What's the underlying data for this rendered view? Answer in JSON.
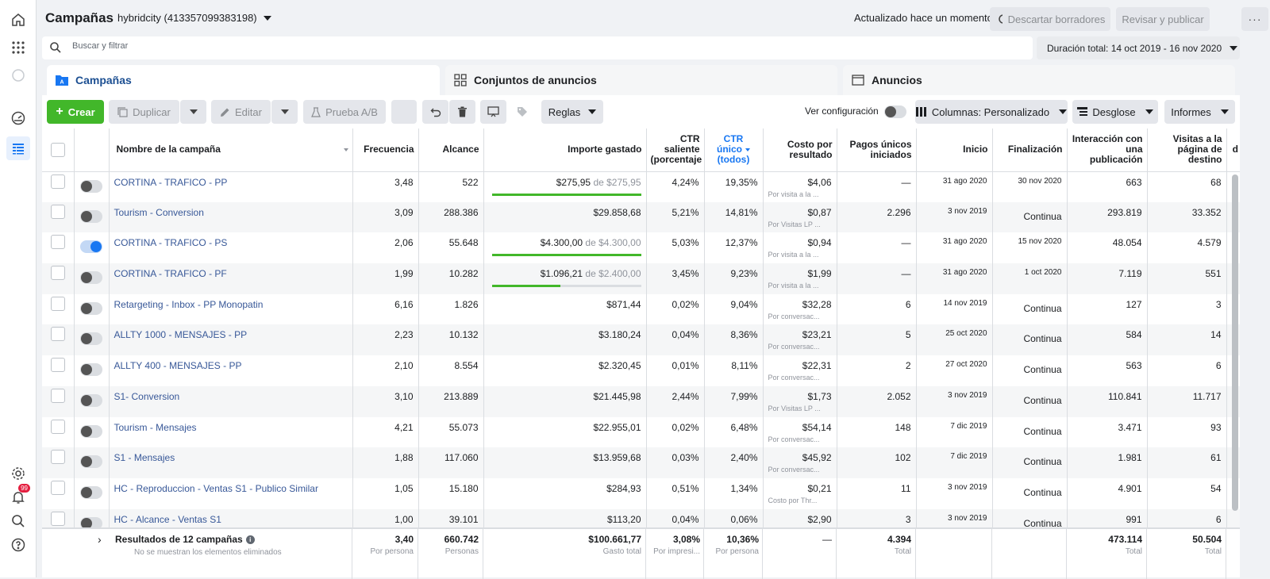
{
  "header": {
    "title": "Campañas",
    "account": "hybridcity (413357099383198)",
    "updated": "Actualizado hace un momento",
    "discard": "Descartar borradores",
    "review": "Revisar y publicar",
    "more": "···"
  },
  "search": {
    "placeholder": "Buscar y filtrar"
  },
  "duration": "Duración total: 14 oct 2019 - 16 nov 2020",
  "nav": {
    "badge": "99"
  },
  "tabs": [
    {
      "label": "Campañas"
    },
    {
      "label": "Conjuntos de anuncios"
    },
    {
      "label": "Anuncios"
    }
  ],
  "toolbar": {
    "create": "Crear",
    "duplicate": "Duplicar",
    "edit": "Editar",
    "abtest": "Prueba A/B",
    "rules": "Reglas",
    "view_config": "Ver configuración",
    "columns": "Columnas: Personalizado",
    "breakdown": "Desglose",
    "reports": "Informes"
  },
  "columns": {
    "name": "Nombre de la campaña",
    "freq": "Frecuencia",
    "reach": "Alcance",
    "spent": "Importe gastado",
    "ctr_out_1": "CTR",
    "ctr_out_2": "saliente",
    "ctr_out_3": "(porcentaje",
    "ctr_uniq_1": "CTR",
    "ctr_uniq_2": "único",
    "ctr_uniq_3": "(todos)",
    "cpr_1": "Costo por",
    "cpr_2": "resultado",
    "payments_1": "Pagos únicos",
    "payments_2": "iniciados",
    "start": "Inicio",
    "end": "Finalización",
    "engagement_1": "Interacción con",
    "engagement_2": "una publicación",
    "visits_1": "Visitas a la",
    "visits_2": "página de",
    "visits_3": "destino",
    "extra": "d"
  },
  "rows": [
    {
      "name": "CORTINA - TRAFICO - PP",
      "on": false,
      "freq": "3,48",
      "reach": "522",
      "spent": "$275,95",
      "budget": "de $275,95",
      "budget_pct": 1.0,
      "ctr_out": "4,24%",
      "ctr_uniq": "19,35%",
      "cpr": "$4,06",
      "cpr_sub": "Por visita a la ...",
      "payments": "—",
      "start": "31 ago 2020",
      "end": "30 nov 2020",
      "engagement": "663",
      "visits": "68"
    },
    {
      "name": "Tourism - Conversion",
      "on": false,
      "freq": "3,09",
      "reach": "288.386",
      "spent": "$29.858,68",
      "budget": "",
      "budget_pct": null,
      "ctr_out": "5,21%",
      "ctr_uniq": "14,81%",
      "cpr": "$0,87",
      "cpr_sub": "Por Visitas LP ...",
      "payments": "2.296",
      "start": "3 nov 2019",
      "end": "Continua",
      "engagement": "293.819",
      "visits": "33.352"
    },
    {
      "name": "CORTINA - TRAFICO - PS",
      "on": true,
      "freq": "2,06",
      "reach": "55.648",
      "spent": "$4.300,00",
      "budget": "de $4.300,00",
      "budget_pct": 1.0,
      "ctr_out": "5,03%",
      "ctr_uniq": "12,37%",
      "cpr": "$0,94",
      "cpr_sub": "Por visita a la ...",
      "payments": "—",
      "start": "31 ago 2020",
      "end": "15 nov 2020",
      "engagement": "48.054",
      "visits": "4.579"
    },
    {
      "name": "CORTINA - TRAFICO - PF",
      "on": false,
      "freq": "1,99",
      "reach": "10.282",
      "spent": "$1.096,21",
      "budget": "de $2.400,00",
      "budget_pct": 0.46,
      "ctr_out": "3,45%",
      "ctr_uniq": "9,23%",
      "cpr": "$1,99",
      "cpr_sub": "Por visita a la ...",
      "payments": "—",
      "start": "31 ago 2020",
      "end": "1 oct 2020",
      "engagement": "7.119",
      "visits": "551"
    },
    {
      "name": "Retargeting - Inbox - PP Monopatin",
      "on": false,
      "freq": "6,16",
      "reach": "1.826",
      "spent": "$871,44",
      "budget": "",
      "budget_pct": null,
      "ctr_out": "0,02%",
      "ctr_uniq": "9,04%",
      "cpr": "$32,28",
      "cpr_sub": "Por conversac...",
      "payments": "6",
      "start": "14 nov 2019",
      "end": "Continua",
      "engagement": "127",
      "visits": "3"
    },
    {
      "name": "ALLTY 1000 - MENSAJES - PP",
      "on": false,
      "freq": "2,23",
      "reach": "10.132",
      "spent": "$3.180,24",
      "budget": "",
      "budget_pct": null,
      "ctr_out": "0,04%",
      "ctr_uniq": "8,36%",
      "cpr": "$23,21",
      "cpr_sub": "Por conversac...",
      "payments": "5",
      "start": "25 oct 2020",
      "end": "Continua",
      "engagement": "584",
      "visits": "14"
    },
    {
      "name": "ALLTY 400 - MENSAJES - PP",
      "on": false,
      "freq": "2,10",
      "reach": "8.554",
      "spent": "$2.320,45",
      "budget": "",
      "budget_pct": null,
      "ctr_out": "0,01%",
      "ctr_uniq": "8,11%",
      "cpr": "$22,31",
      "cpr_sub": "Por conversac...",
      "payments": "2",
      "start": "27 oct 2020",
      "end": "Continua",
      "engagement": "563",
      "visits": "6"
    },
    {
      "name": "S1- Conversion",
      "on": false,
      "freq": "3,10",
      "reach": "213.889",
      "spent": "$21.445,98",
      "budget": "",
      "budget_pct": null,
      "ctr_out": "2,44%",
      "ctr_uniq": "7,99%",
      "cpr": "$1,73",
      "cpr_sub": "Por Visitas LP ...",
      "payments": "2.052",
      "start": "3 nov 2019",
      "end": "Continua",
      "engagement": "110.841",
      "visits": "11.717"
    },
    {
      "name": "Tourism - Mensajes",
      "on": false,
      "freq": "4,21",
      "reach": "55.073",
      "spent": "$22.955,01",
      "budget": "",
      "budget_pct": null,
      "ctr_out": "0,02%",
      "ctr_uniq": "6,48%",
      "cpr": "$54,14",
      "cpr_sub": "Por conversac...",
      "payments": "148",
      "start": "7 dic 2019",
      "end": "Continua",
      "engagement": "3.471",
      "visits": "93"
    },
    {
      "name": "S1 - Mensajes",
      "on": false,
      "freq": "1,88",
      "reach": "117.060",
      "spent": "$13.959,68",
      "budget": "",
      "budget_pct": null,
      "ctr_out": "0,03%",
      "ctr_uniq": "2,40%",
      "cpr": "$45,92",
      "cpr_sub": "Por conversac...",
      "payments": "102",
      "start": "7 dic 2019",
      "end": "Continua",
      "engagement": "1.981",
      "visits": "61"
    },
    {
      "name": "HC - Reproduccion - Ventas S1 - Publico Similar",
      "on": false,
      "freq": "1,05",
      "reach": "15.180",
      "spent": "$284,93",
      "budget": "",
      "budget_pct": null,
      "ctr_out": "0,51%",
      "ctr_uniq": "1,34%",
      "cpr": "$0,21",
      "cpr_sub": "Costo por Thr...",
      "payments": "11",
      "start": "3 nov 2019",
      "end": "Continua",
      "engagement": "4.901",
      "visits": "54"
    },
    {
      "name": "HC - Alcance - Ventas S1",
      "on": false,
      "freq": "1,00",
      "reach": "39.101",
      "spent": "$113,20",
      "budget": "",
      "budget_pct": null,
      "ctr_out": "0,04%",
      "ctr_uniq": "0,06%",
      "cpr": "$2,90",
      "cpr_sub": "",
      "payments": "3",
      "start": "3 nov 2019",
      "end": "Continua",
      "engagement": "991",
      "visits": "6"
    }
  ],
  "totals": {
    "label": "Resultados de 12 campañas",
    "note": "No se muestran los elementos eliminados",
    "freq": "3,40",
    "freq_sub": "Por persona",
    "reach": "660.742",
    "reach_sub": "Personas",
    "spent": "$100.661,77",
    "spent_sub": "Gasto total",
    "ctr_out": "3,08%",
    "ctr_out_sub": "Por impresi...",
    "ctr_uniq": "10,36%",
    "ctr_uniq_sub": "Por persona",
    "cpr": "—",
    "payments": "4.394",
    "payments_sub": "Total",
    "engagement": "473.114",
    "engagement_sub": "Total",
    "visits": "50.504",
    "visits_sub": "Total"
  },
  "colors": {
    "link": "#385898",
    "green": "#42b72a",
    "accent": "#1877f2"
  }
}
